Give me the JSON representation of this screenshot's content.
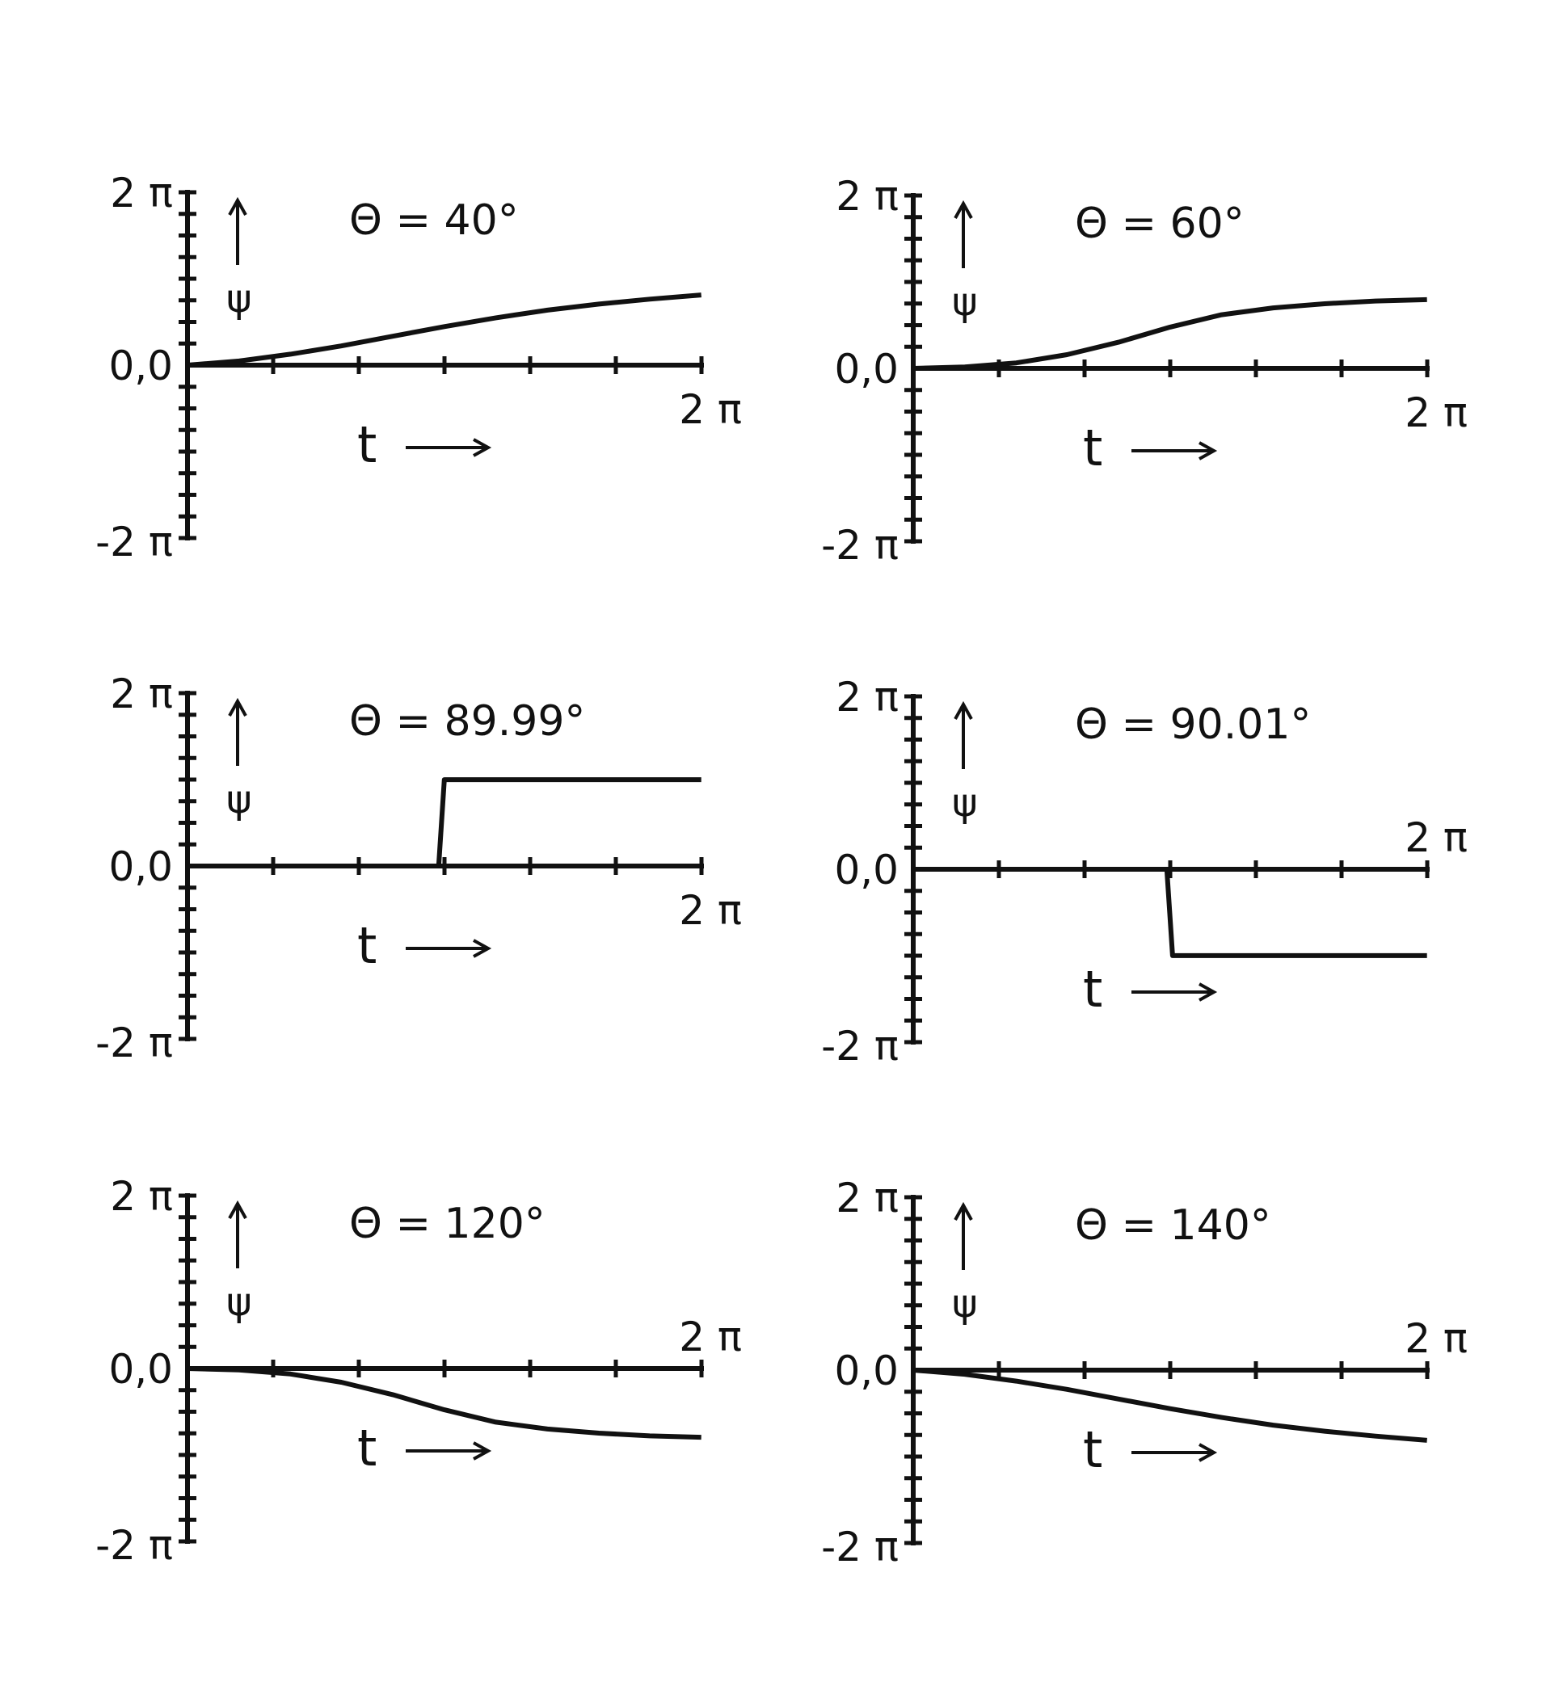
{
  "chart_data": [
    {
      "type": "line",
      "title": "Θ = 40°",
      "ylabel": "ψ",
      "xlabel": "t",
      "ylim": [
        -6.2832,
        6.2832
      ],
      "xlim": [
        0,
        6.2832
      ],
      "y_ticklabels": {
        "top": "2 π",
        "zero": "0,0",
        "bottom": "-2 π"
      },
      "x_ticklabel_end": "2 π",
      "x_label_pos": "below",
      "series": [
        {
          "x": [
            0,
            0.63,
            1.26,
            1.88,
            2.51,
            3.14,
            3.77,
            4.4,
            5.03,
            5.65,
            6.28
          ],
          "y": [
            0,
            0.15,
            0.4,
            0.7,
            1.05,
            1.4,
            1.72,
            2.0,
            2.22,
            2.4,
            2.55
          ]
        }
      ]
    },
    {
      "type": "line",
      "title": "Θ = 60°",
      "ylabel": "ψ",
      "xlabel": "t",
      "ylim": [
        -6.2832,
        6.2832
      ],
      "xlim": [
        0,
        6.2832
      ],
      "y_ticklabels": {
        "top": "2 π",
        "zero": "0,0",
        "bottom": "-2 π"
      },
      "x_ticklabel_end": "2 π",
      "x_label_pos": "below",
      "series": [
        {
          "x": [
            0,
            0.63,
            1.26,
            1.88,
            2.51,
            3.14,
            3.77,
            4.4,
            5.03,
            5.65,
            6.28
          ],
          "y": [
            0,
            0.05,
            0.2,
            0.5,
            0.95,
            1.5,
            1.95,
            2.2,
            2.35,
            2.45,
            2.5
          ]
        }
      ]
    },
    {
      "type": "line",
      "title": "Θ = 89.99°",
      "ylabel": "ψ",
      "xlabel": "t",
      "ylim": [
        -6.2832,
        6.2832
      ],
      "xlim": [
        0,
        6.2832
      ],
      "y_ticklabels": {
        "top": "2 π",
        "zero": "0,0",
        "bottom": "-2 π"
      },
      "x_ticklabel_end": "2 π",
      "x_label_pos": "below",
      "series": [
        {
          "x": [
            0,
            3.07,
            3.14,
            6.28
          ],
          "y": [
            0,
            0,
            3.14,
            3.14
          ]
        }
      ]
    },
    {
      "type": "line",
      "title": "Θ = 90.01°",
      "ylabel": "ψ",
      "xlabel": "t",
      "ylim": [
        -6.2832,
        6.2832
      ],
      "xlim": [
        0,
        6.2832
      ],
      "y_ticklabels": {
        "top": "2 π",
        "zero": "0,0",
        "bottom": "-2 π"
      },
      "x_ticklabel_end": "2 π",
      "x_label_pos": "above",
      "series": [
        {
          "x": [
            0,
            3.1,
            3.17,
            6.28
          ],
          "y": [
            0,
            0,
            -3.14,
            -3.14
          ]
        }
      ]
    },
    {
      "type": "line",
      "title": "Θ = 120°",
      "ylabel": "ψ",
      "xlabel": "t",
      "ylim": [
        -6.2832,
        6.2832
      ],
      "xlim": [
        0,
        6.2832
      ],
      "y_ticklabels": {
        "top": "2 π",
        "zero": "0,0",
        "bottom": "-2 π"
      },
      "x_ticklabel_end": "2 π",
      "x_label_pos": "above",
      "series": [
        {
          "x": [
            0,
            0.63,
            1.26,
            1.88,
            2.51,
            3.14,
            3.77,
            4.4,
            5.03,
            5.65,
            6.28
          ],
          "y": [
            0,
            -0.05,
            -0.2,
            -0.5,
            -0.95,
            -1.5,
            -1.95,
            -2.2,
            -2.35,
            -2.45,
            -2.5
          ]
        }
      ]
    },
    {
      "type": "line",
      "title": "Θ = 140°",
      "ylabel": "ψ",
      "xlabel": "t",
      "ylim": [
        -6.2832,
        6.2832
      ],
      "xlim": [
        0,
        6.2832
      ],
      "y_ticklabels": {
        "top": "2 π",
        "zero": "0,0",
        "bottom": "-2 π"
      },
      "x_ticklabel_end": "2 π",
      "x_label_pos": "above",
      "series": [
        {
          "x": [
            0,
            0.63,
            1.26,
            1.88,
            2.51,
            3.14,
            3.77,
            4.4,
            5.03,
            5.65,
            6.28
          ],
          "y": [
            0,
            -0.15,
            -0.4,
            -0.7,
            -1.05,
            -1.4,
            -1.72,
            -2.0,
            -2.22,
            -2.4,
            -2.55
          ]
        }
      ]
    }
  ]
}
